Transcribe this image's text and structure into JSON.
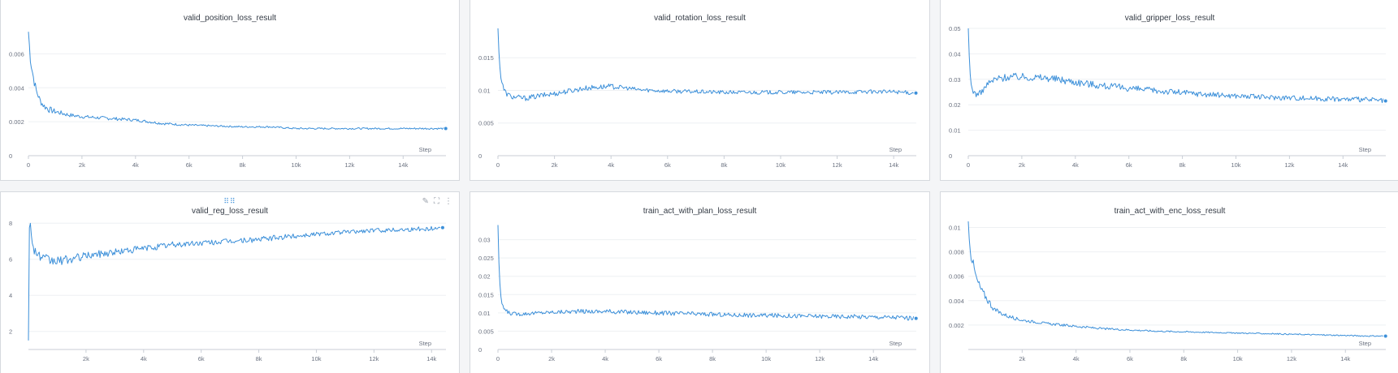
{
  "colors": {
    "series": "#3b8fd9"
  },
  "toolbar": {
    "edit_icon": "pencil-icon",
    "expand_icon": "expand-icon",
    "menu_icon": "more-vertical-icon",
    "drag_icon": "drag-handle-icon"
  },
  "chart_data": [
    {
      "type": "line",
      "title": "valid_position_loss_result",
      "xlabel": "Step",
      "ylabel": "",
      "xlim": [
        0,
        15600
      ],
      "ylim": [
        0,
        0.0075
      ],
      "xticks": [
        0,
        2000,
        4000,
        6000,
        8000,
        10000,
        12000,
        14000
      ],
      "xtick_labels": [
        "0",
        "2k",
        "4k",
        "6k",
        "8k",
        "10k",
        "12k",
        "14k"
      ],
      "yticks": [
        0,
        0.002,
        0.004,
        0.006
      ],
      "ytick_labels": [
        "0",
        "0.002",
        "0.004",
        "0.006"
      ],
      "grid": true,
      "series": [
        {
          "x": [
            0,
            60,
            120,
            200,
            300,
            450,
            600,
            800,
            1000,
            1500,
            2000,
            3000,
            4000,
            5000,
            6000,
            7000,
            8000,
            9000,
            10000,
            11000,
            12000,
            13000,
            14000,
            15000,
            15500
          ],
          "y": [
            0.0073,
            0.006,
            0.0052,
            0.0045,
            0.0038,
            0.0032,
            0.0029,
            0.0027,
            0.0026,
            0.0024,
            0.0023,
            0.0022,
            0.0021,
            0.0019,
            0.0018,
            0.00175,
            0.0017,
            0.0017,
            0.0016,
            0.0016,
            0.0016,
            0.0016,
            0.0016,
            0.0016,
            0.0016
          ],
          "noise": [
            0,
            0.0004,
            0.0003,
            0.0003,
            0.0002,
            0.0002,
            0.0002,
            0.0002,
            0.00015,
            0.00012,
            0.0001,
            0.0001,
            8e-05,
            8e-05,
            6e-05,
            5e-05,
            5e-05,
            5e-05,
            5e-05,
            5e-05,
            5e-05,
            5e-05,
            5e-05,
            5e-05,
            5e-05
          ]
        }
      ]
    },
    {
      "type": "line",
      "title": "valid_rotation_loss_result",
      "xlabel": "Step",
      "ylabel": "",
      "xlim": [
        0,
        14800
      ],
      "ylim": [
        0,
        0.0195
      ],
      "xticks": [
        0,
        2000,
        4000,
        6000,
        8000,
        10000,
        12000,
        14000
      ],
      "xtick_labels": [
        "0",
        "2k",
        "4k",
        "6k",
        "8k",
        "10k",
        "12k",
        "14k"
      ],
      "yticks": [
        0,
        0.005,
        0.01,
        0.015
      ],
      "ytick_labels": [
        "0",
        "0.005",
        "0.01",
        "0.015"
      ],
      "grid": true,
      "series": [
        {
          "x": [
            0,
            50,
            100,
            200,
            300,
            500,
            1000,
            1500,
            2000,
            2500,
            3000,
            3500,
            4000,
            4500,
            5000,
            6000,
            7000,
            8000,
            9000,
            10000,
            11000,
            12000,
            13000,
            14000,
            14700
          ],
          "y": [
            0.0195,
            0.015,
            0.012,
            0.0102,
            0.0095,
            0.009,
            0.0088,
            0.0092,
            0.0095,
            0.0099,
            0.0103,
            0.0105,
            0.0106,
            0.0104,
            0.0101,
            0.0099,
            0.0098,
            0.0097,
            0.0097,
            0.0097,
            0.0097,
            0.0097,
            0.0098,
            0.0098,
            0.0096
          ],
          "noise": [
            0,
            0.0008,
            0.0006,
            0.0004,
            0.0004,
            0.0004,
            0.0004,
            0.0004,
            0.0004,
            0.0004,
            0.0004,
            0.0004,
            0.0004,
            0.0003,
            0.0003,
            0.0003,
            0.0003,
            0.0003,
            0.0003,
            0.0003,
            0.0003,
            0.0003,
            0.0003,
            0.0003,
            0.0003
          ]
        }
      ]
    },
    {
      "type": "line",
      "title": "valid_gripper_loss_result",
      "xlabel": "Step",
      "ylabel": "",
      "xlim": [
        0,
        15600
      ],
      "ylim": [
        0,
        0.05
      ],
      "xticks": [
        0,
        2000,
        4000,
        6000,
        8000,
        10000,
        12000,
        14000
      ],
      "xtick_labels": [
        "0",
        "2k",
        "4k",
        "6k",
        "8k",
        "10k",
        "12k",
        "14k"
      ],
      "yticks": [
        0,
        0.01,
        0.02,
        0.03,
        0.04,
        0.05
      ],
      "ytick_labels": [
        "0",
        "0.01",
        "0.02",
        "0.03",
        "0.04",
        "0.05"
      ],
      "grid": true,
      "series": [
        {
          "x": [
            0,
            50,
            100,
            200,
            300,
            500,
            700,
            1000,
            1500,
            2000,
            3000,
            4000,
            5000,
            6000,
            7000,
            8000,
            9000,
            10000,
            11000,
            12000,
            13000,
            14000,
            15000,
            15500
          ],
          "y": [
            0.05,
            0.035,
            0.028,
            0.025,
            0.024,
            0.025,
            0.028,
            0.03,
            0.031,
            0.031,
            0.0305,
            0.029,
            0.0275,
            0.0265,
            0.0255,
            0.0248,
            0.024,
            0.0235,
            0.023,
            0.0228,
            0.0225,
            0.0222,
            0.022,
            0.0215
          ],
          "noise": [
            0,
            0.002,
            0.0015,
            0.0012,
            0.001,
            0.001,
            0.0012,
            0.0015,
            0.0015,
            0.0015,
            0.0015,
            0.0015,
            0.0014,
            0.0013,
            0.0012,
            0.0012,
            0.0011,
            0.001,
            0.001,
            0.001,
            0.001,
            0.001,
            0.001,
            0.001
          ]
        }
      ]
    },
    {
      "type": "line",
      "title": "valid_reg_loss_result",
      "xlabel": "Step",
      "ylabel": "",
      "xlim": [
        0,
        14500
      ],
      "ylim": [
        1,
        8.1
      ],
      "xticks": [
        2000,
        4000,
        6000,
        8000,
        10000,
        12000,
        14000
      ],
      "xtick_labels": [
        "2k",
        "4k",
        "6k",
        "8k",
        "10k",
        "12k",
        "14k"
      ],
      "yticks": [
        2,
        4,
        6,
        8
      ],
      "ytick_labels": [
        "2",
        "4",
        "6",
        "8"
      ],
      "grid": true,
      "series": [
        {
          "x": [
            0,
            15,
            30,
            60,
            100,
            200,
            300,
            500,
            800,
            1000,
            1500,
            2000,
            3000,
            4000,
            5000,
            6000,
            7000,
            8000,
            9000,
            10000,
            11000,
            12000,
            13000,
            14000,
            14300
          ],
          "y": [
            1.5,
            6.0,
            8.0,
            8.0,
            7.2,
            6.6,
            6.3,
            6.0,
            5.9,
            5.9,
            6.0,
            6.2,
            6.4,
            6.6,
            6.8,
            6.9,
            7.0,
            7.1,
            7.25,
            7.4,
            7.5,
            7.6,
            7.65,
            7.7,
            7.75
          ],
          "noise": [
            0,
            0.5,
            0.3,
            0.3,
            0.3,
            0.3,
            0.3,
            0.3,
            0.3,
            0.25,
            0.25,
            0.2,
            0.2,
            0.18,
            0.18,
            0.15,
            0.15,
            0.15,
            0.15,
            0.12,
            0.12,
            0.12,
            0.12,
            0.12,
            0.1
          ]
        }
      ]
    },
    {
      "type": "line",
      "title": "train_act_with_plan_loss_result",
      "xlabel": "Step",
      "ylabel": "",
      "xlim": [
        0,
        15600
      ],
      "ylim": [
        0,
        0.035
      ],
      "xticks": [
        0,
        2000,
        4000,
        6000,
        8000,
        10000,
        12000,
        14000
      ],
      "xtick_labels": [
        "0",
        "2k",
        "4k",
        "6k",
        "8k",
        "10k",
        "12k",
        "14k"
      ],
      "yticks": [
        0,
        0.005,
        0.01,
        0.015,
        0.02,
        0.025,
        0.03
      ],
      "ytick_labels": [
        "0",
        "0.005",
        "0.01",
        "0.015",
        "0.02",
        "0.025",
        "0.03"
      ],
      "grid": true,
      "series": [
        {
          "x": [
            0,
            50,
            100,
            200,
            300,
            500,
            800,
            1000,
            1500,
            2000,
            3000,
            4000,
            5000,
            6000,
            7000,
            8000,
            9000,
            10000,
            11000,
            12000,
            13000,
            14000,
            15000,
            15500
          ],
          "y": [
            0.034,
            0.02,
            0.014,
            0.0115,
            0.0105,
            0.0098,
            0.0097,
            0.0098,
            0.01,
            0.0102,
            0.0104,
            0.0104,
            0.0102,
            0.01,
            0.0098,
            0.0096,
            0.0094,
            0.0093,
            0.0092,
            0.0091,
            0.009,
            0.0089,
            0.0088,
            0.0085
          ],
          "noise": [
            0,
            0.001,
            0.0008,
            0.0006,
            0.0005,
            0.0005,
            0.0005,
            0.0005,
            0.0005,
            0.0005,
            0.0006,
            0.0006,
            0.0006,
            0.0006,
            0.0006,
            0.0006,
            0.0006,
            0.0006,
            0.0006,
            0.0006,
            0.0006,
            0.0006,
            0.0006,
            0.0006
          ]
        }
      ]
    },
    {
      "type": "line",
      "title": "train_act_with_enc_loss_result",
      "xlabel": "Step",
      "ylabel": "",
      "xlim": [
        0,
        15500
      ],
      "ylim": [
        0,
        0.0105
      ],
      "xticks": [
        2000,
        4000,
        6000,
        8000,
        10000,
        12000,
        14000
      ],
      "xtick_labels": [
        "2k",
        "4k",
        "6k",
        "8k",
        "10k",
        "12k",
        "14k"
      ],
      "yticks": [
        0.002,
        0.004,
        0.006,
        0.008,
        0.01
      ],
      "ytick_labels": [
        "0.002",
        "0.004",
        "0.006",
        "0.008",
        "0.01"
      ],
      "grid": true,
      "series": [
        {
          "x": [
            0,
            50,
            100,
            200,
            300,
            500,
            800,
            1000,
            1500,
            2000,
            3000,
            4000,
            5000,
            6000,
            7000,
            8000,
            9000,
            10000,
            11000,
            12000,
            13000,
            14000,
            15000,
            15400
          ],
          "y": [
            0.0105,
            0.009,
            0.0078,
            0.0068,
            0.0058,
            0.0048,
            0.0038,
            0.0032,
            0.0027,
            0.0024,
            0.0021,
            0.0019,
            0.0017,
            0.0016,
            0.0015,
            0.00145,
            0.0014,
            0.00135,
            0.0013,
            0.00125,
            0.0012,
            0.00115,
            0.0011,
            0.0011
          ],
          "noise": [
            0,
            0.0006,
            0.0005,
            0.0004,
            0.0004,
            0.0003,
            0.0003,
            0.0002,
            0.00015,
            0.00012,
            0.0001,
            0.0001,
            8e-05,
            7e-05,
            6e-05,
            6e-05,
            5e-05,
            5e-05,
            5e-05,
            5e-05,
            5e-05,
            5e-05,
            5e-05,
            5e-05
          ]
        }
      ]
    }
  ]
}
